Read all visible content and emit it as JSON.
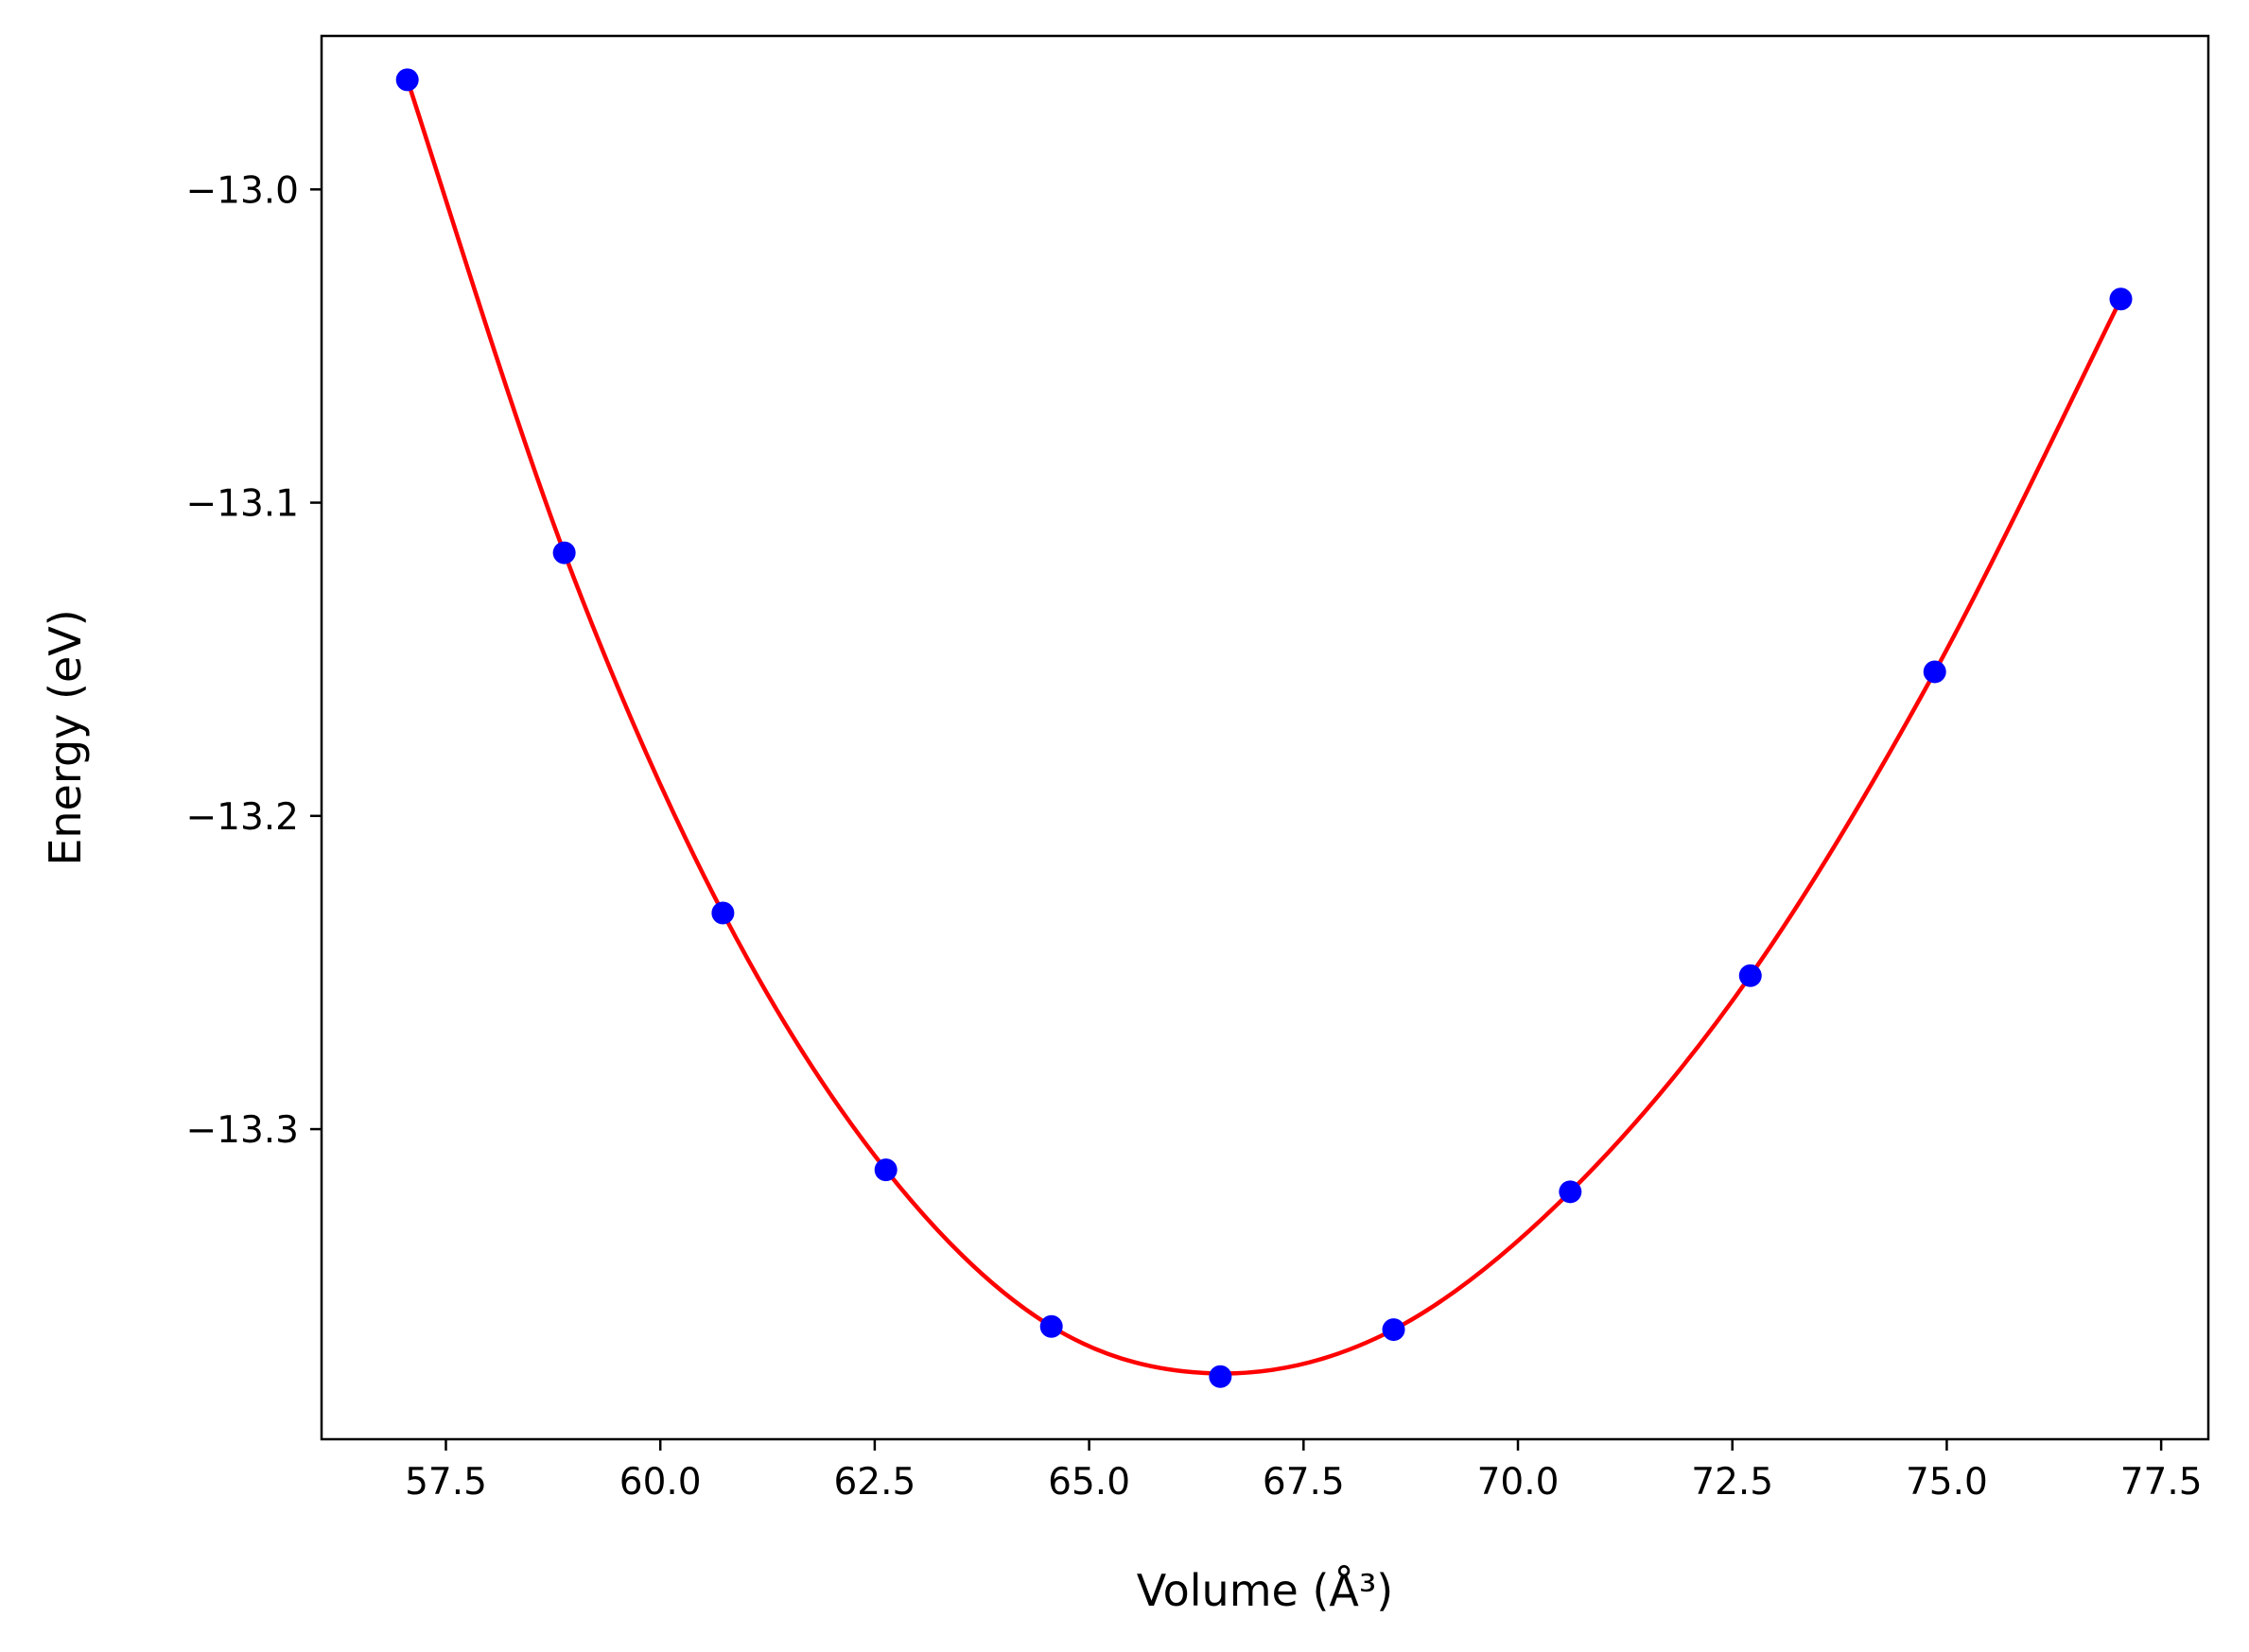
{
  "chart_data": {
    "type": "scatter",
    "title": "",
    "xlabel": "Volume (Å³)",
    "ylabel": "Energy (eV)",
    "xlim": [
      56.05,
      78.05
    ],
    "ylim": [
      -13.399,
      -12.951
    ],
    "x_ticks": [
      57.5,
      60.0,
      62.5,
      65.0,
      67.5,
      70.0,
      72.5,
      75.0,
      77.5
    ],
    "x_tick_labels": [
      "57.5",
      "60.0",
      "62.5",
      "65.0",
      "67.5",
      "70.0",
      "72.5",
      "75.0",
      "77.5"
    ],
    "y_ticks": [
      -13.0,
      -13.1,
      -13.2,
      -13.3
    ],
    "y_tick_labels": [
      "−13.0",
      "−13.1",
      "−13.2",
      "−13.3"
    ],
    "grid": false,
    "series": [
      {
        "kind": "points",
        "color": "#0000ff",
        "x": [
          57.05,
          58.88,
          60.73,
          62.63,
          64.56,
          66.53,
          68.55,
          70.61,
          72.71,
          74.86,
          77.03
        ],
        "y": [
          -12.965,
          -13.116,
          -13.231,
          -13.313,
          -13.363,
          -13.379,
          -13.364,
          -13.32,
          -13.251,
          -13.154,
          -13.035
        ]
      },
      {
        "kind": "fit-curve",
        "color": "#ff0000",
        "x": [
          57.05,
          58.88,
          60.73,
          62.63,
          64.56,
          66.53,
          68.55,
          70.61,
          72.71,
          74.86,
          77.03
        ],
        "y": [
          -12.965,
          -13.116,
          -13.231,
          -13.313,
          -13.363,
          -13.378,
          -13.364,
          -13.32,
          -13.251,
          -13.154,
          -13.035
        ]
      }
    ]
  }
}
